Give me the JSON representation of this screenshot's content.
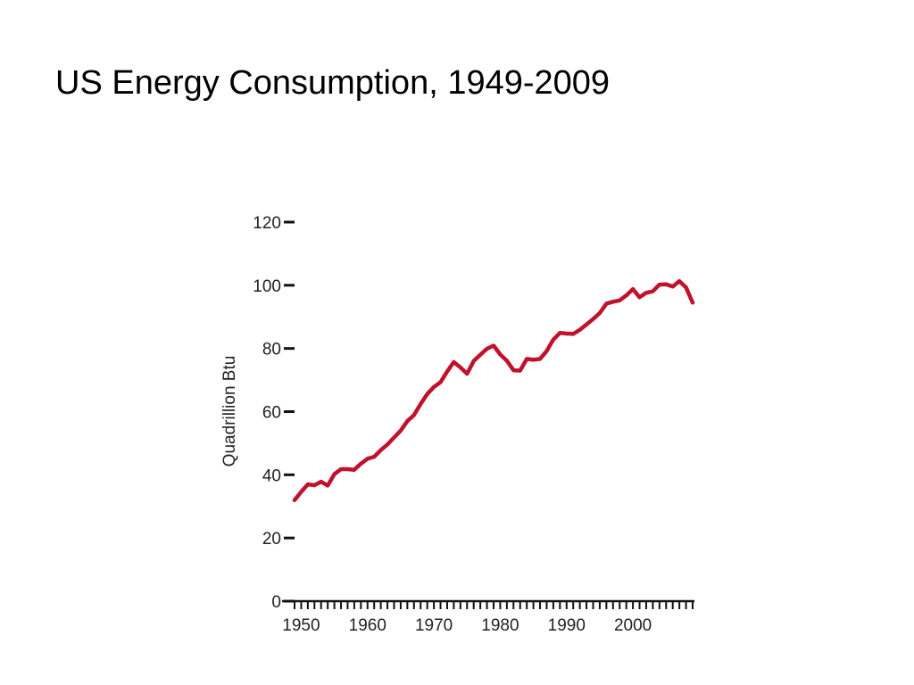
{
  "slide": {
    "title": "US Energy Consumption, 1949-2009"
  },
  "chart_data": {
    "type": "line",
    "title": "",
    "xlabel": "",
    "ylabel": "Quadrillion Btu",
    "xlim": [
      1949,
      2009
    ],
    "ylim": [
      0,
      120
    ],
    "x_ticks": [
      1950,
      1960,
      1970,
      1980,
      1990,
      2000
    ],
    "y_ticks": [
      0,
      20,
      40,
      60,
      80,
      100,
      120
    ],
    "grid": false,
    "legend": "none",
    "series": [
      {
        "color": "#c0122c",
        "x": [
          1949,
          1950,
          1951,
          1952,
          1953,
          1954,
          1955,
          1956,
          1957,
          1958,
          1959,
          1960,
          1961,
          1962,
          1963,
          1964,
          1965,
          1966,
          1967,
          1968,
          1969,
          1970,
          1971,
          1972,
          1973,
          1974,
          1975,
          1976,
          1977,
          1978,
          1979,
          1980,
          1981,
          1982,
          1983,
          1984,
          1985,
          1986,
          1987,
          1988,
          1989,
          1990,
          1991,
          1992,
          1993,
          1994,
          1995,
          1996,
          1997,
          1998,
          1999,
          2000,
          2001,
          2002,
          2003,
          2004,
          2005,
          2006,
          2007,
          2008,
          2009
        ],
        "values": [
          32,
          34.6,
          37,
          36.7,
          37.8,
          36.6,
          40.2,
          41.8,
          41.8,
          41.6,
          43.5,
          45.1,
          45.7,
          47.8,
          49.6,
          51.8,
          54,
          57,
          58.9,
          62.4,
          65.6,
          67.8,
          69.3,
          72.7,
          75.7,
          74,
          72,
          76,
          78,
          79.9,
          80.9,
          78.1,
          76.1,
          73.1,
          73,
          76.7,
          76.4,
          76.7,
          79.2,
          82.8,
          84.9,
          84.7,
          84.6,
          85.9,
          87.6,
          89.3,
          91.2,
          94.2,
          94.8,
          95.2,
          96.8,
          98.8,
          96.2,
          97.6,
          98.1,
          100.2,
          100.3,
          99.6,
          101.3,
          99.3,
          94.5
        ]
      }
    ]
  }
}
